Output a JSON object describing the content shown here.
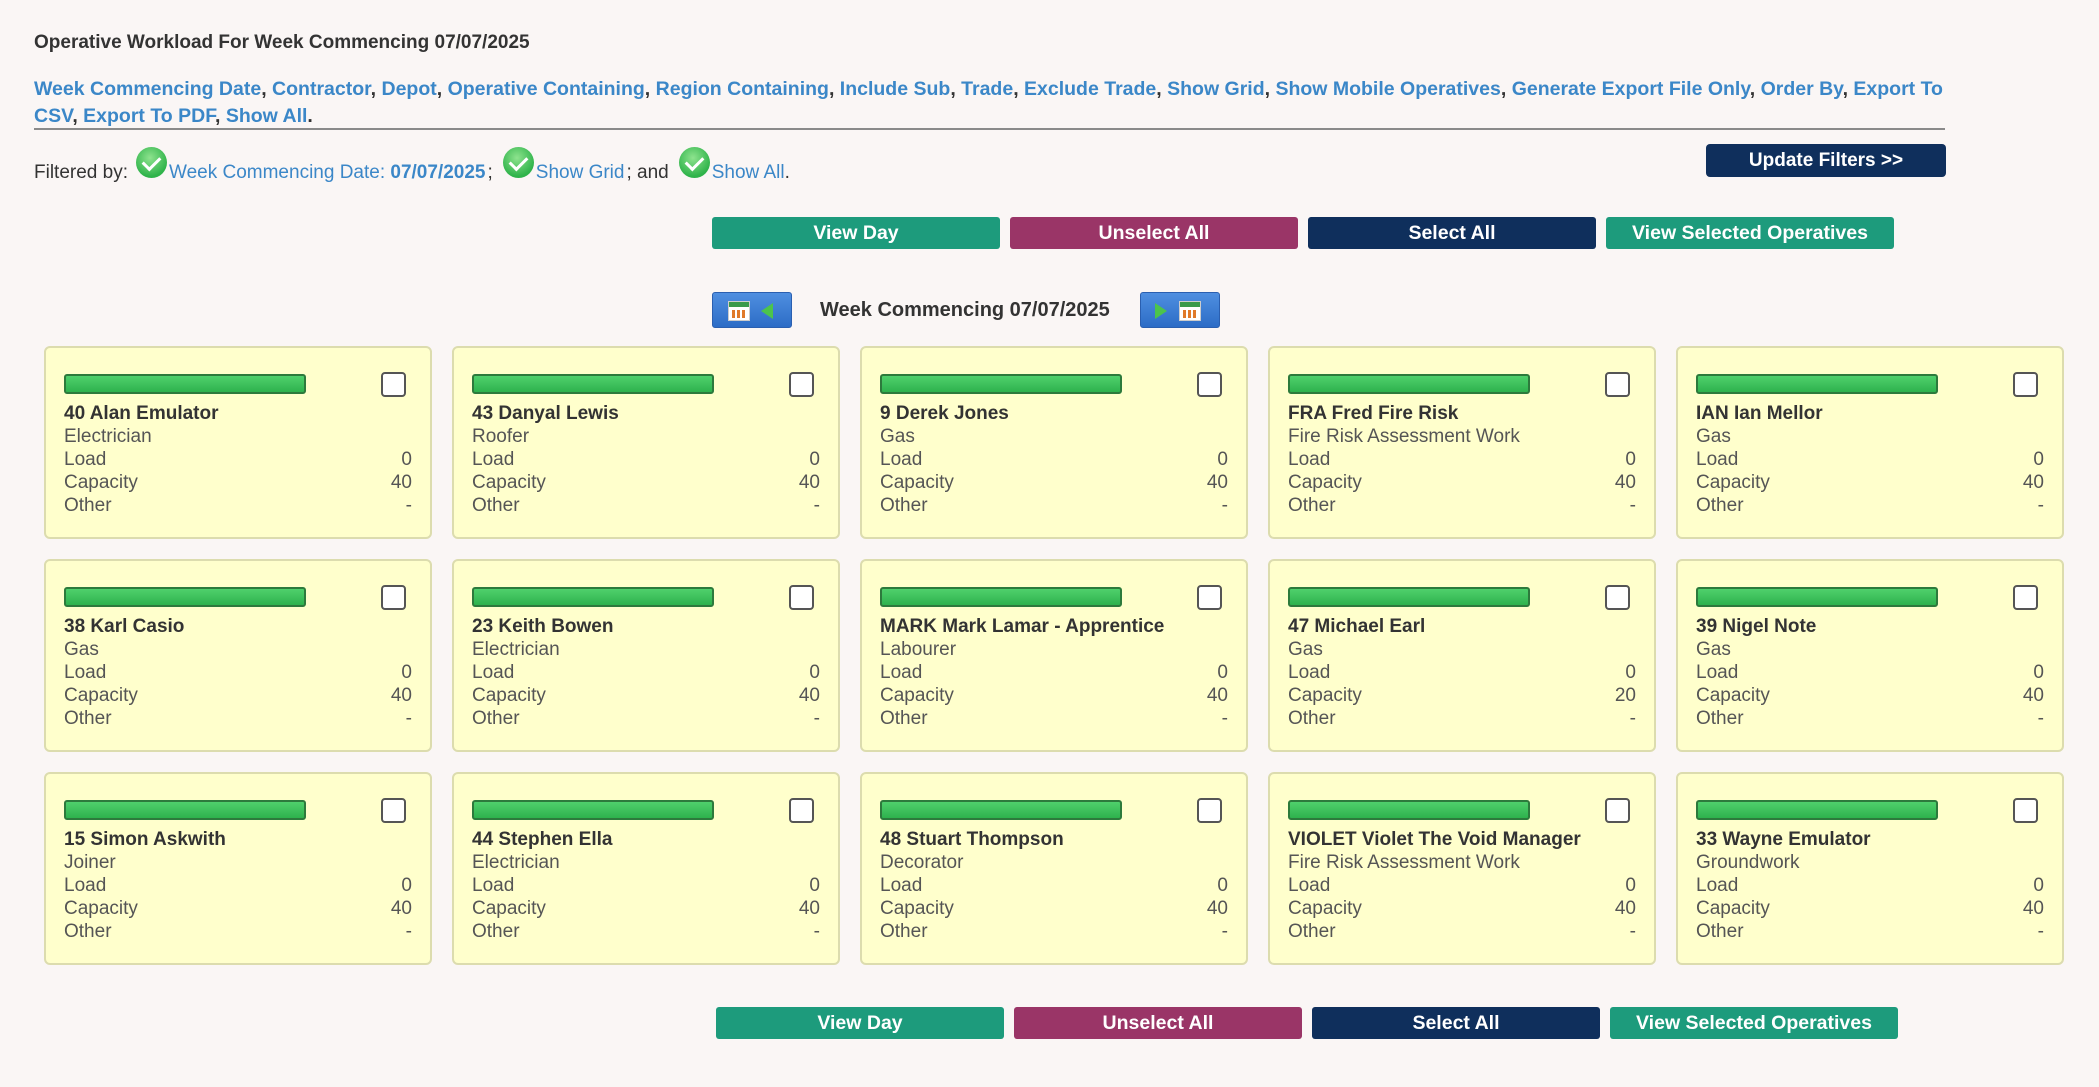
{
  "page_title": "Operative Workload For Week Commencing 07/07/2025",
  "filter_links": [
    "Week Commencing Date",
    "Contractor",
    "Depot",
    "Operative Containing",
    "Region Containing",
    "Include Sub",
    "Trade",
    "Exclude Trade",
    "Show Grid",
    "Show Mobile Operatives",
    "Generate Export File Only",
    "Order By",
    "Export To CSV",
    "Export To PDF",
    "Show All"
  ],
  "filtered_by": {
    "label": "Filtered by:",
    "week_label": "Week Commencing Date: ",
    "week_value": "07/07/2025",
    "sep1": ";",
    "show_grid": "Show Grid",
    "sep2": "; and",
    "show_all": "Show All",
    "end": "."
  },
  "update_button": "Update Filters >>",
  "actions": {
    "view_day": "View Day",
    "unselect_all": "Unselect All",
    "select_all": "Select All",
    "view_selected": "View Selected Operatives"
  },
  "week_nav": {
    "label": "Week Commencing 07/07/2025",
    "prev_icon": "calendar-prev-icon",
    "next_icon": "calendar-next-icon"
  },
  "field_labels": {
    "load": "Load",
    "capacity": "Capacity",
    "other": "Other"
  },
  "colors": {
    "teal": "#1d9b7c",
    "maroon": "#9a3567",
    "navy": "#0f2f5c",
    "link": "#3b87c8",
    "card": "#ffffcc",
    "bar": "#2eb24d"
  },
  "operatives": [
    {
      "name": "40 Alan Emulator",
      "trade": "Electrician",
      "load": "0",
      "capacity": "40",
      "other": "-",
      "bar_fill_percent": 100
    },
    {
      "name": "43 Danyal Lewis",
      "trade": "Roofer",
      "load": "0",
      "capacity": "40",
      "other": "-",
      "bar_fill_percent": 100
    },
    {
      "name": "9 Derek Jones",
      "trade": "Gas",
      "load": "0",
      "capacity": "40",
      "other": "-",
      "bar_fill_percent": 100
    },
    {
      "name": "FRA Fred Fire Risk",
      "trade": "Fire Risk Assessment Work",
      "load": "0",
      "capacity": "40",
      "other": "-",
      "bar_fill_percent": 100
    },
    {
      "name": "IAN Ian Mellor",
      "trade": "Gas",
      "load": "0",
      "capacity": "40",
      "other": "-",
      "bar_fill_percent": 100
    },
    {
      "name": "38 Karl Casio",
      "trade": "Gas",
      "load": "0",
      "capacity": "40",
      "other": "-",
      "bar_fill_percent": 100
    },
    {
      "name": "23 Keith Bowen",
      "trade": "Electrician",
      "load": "0",
      "capacity": "40",
      "other": "-",
      "bar_fill_percent": 100
    },
    {
      "name": "MARK Mark Lamar - Apprentice",
      "trade": "Labourer",
      "load": "0",
      "capacity": "40",
      "other": "-",
      "bar_fill_percent": 100
    },
    {
      "name": "47 Michael Earl",
      "trade": "Gas",
      "load": "0",
      "capacity": "20",
      "other": "-",
      "bar_fill_percent": 100
    },
    {
      "name": "39 Nigel Note",
      "trade": "Gas",
      "load": "0",
      "capacity": "40",
      "other": "-",
      "bar_fill_percent": 100
    },
    {
      "name": "15 Simon Askwith",
      "trade": "Joiner",
      "load": "0",
      "capacity": "40",
      "other": "-",
      "bar_fill_percent": 100
    },
    {
      "name": "44 Stephen Ella",
      "trade": "Electrician",
      "load": "0",
      "capacity": "40",
      "other": "-",
      "bar_fill_percent": 100
    },
    {
      "name": "48 Stuart Thompson",
      "trade": "Decorator",
      "load": "0",
      "capacity": "40",
      "other": "-",
      "bar_fill_percent": 100
    },
    {
      "name": "VIOLET Violet The Void Manager",
      "trade": "Fire Risk Assessment Work",
      "load": "0",
      "capacity": "40",
      "other": "-",
      "bar_fill_percent": 100
    },
    {
      "name": "33 Wayne Emulator",
      "trade": "Groundwork",
      "load": "0",
      "capacity": "40",
      "other": "-",
      "bar_fill_percent": 100
    }
  ]
}
